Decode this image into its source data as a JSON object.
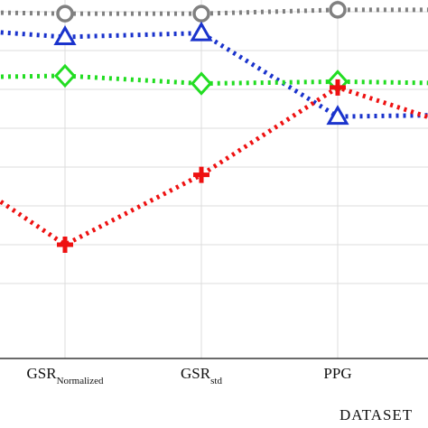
{
  "chart_data": {
    "type": "line",
    "xlabel": "DATASET",
    "ylabel": "",
    "title": "",
    "grid": true,
    "legend": "none",
    "x_ticks": [
      {
        "main": "",
        "sub": ""
      },
      {
        "main": "GSR",
        "sub": "Normalized"
      },
      {
        "main": "GSR",
        "sub": "std"
      },
      {
        "main": "PPG",
        "sub": ""
      },
      {
        "main": "",
        "sub": ""
      }
    ],
    "series": [
      {
        "color": "#808080",
        "marker": "circle",
        "values": [
          100,
          99,
          99,
          101,
          101
        ]
      },
      {
        "color": "#1a33cc",
        "marker": "triangle",
        "values": [
          92,
          87,
          89,
          46,
          47
        ]
      },
      {
        "color": "#22dd22",
        "marker": "diamond",
        "values": [
          66,
          67,
          63,
          64,
          63
        ]
      },
      {
        "color": "#ee1111",
        "marker": "plus",
        "values": [
          27,
          -20,
          16,
          61,
          38
        ]
      }
    ]
  }
}
